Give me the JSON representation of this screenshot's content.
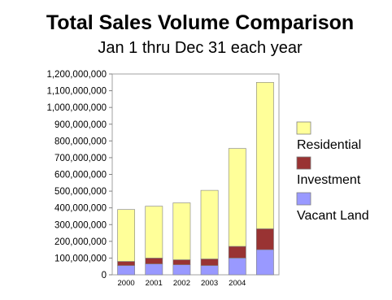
{
  "chart_data": {
    "type": "bar",
    "stacked": true,
    "title": "Total Sales Volume Comparison",
    "subtitle": "Jan 1 thru Dec 31 each year",
    "xlabel": "",
    "ylabel": "",
    "categories": [
      "2000",
      "2001",
      "2002",
      "2003",
      "2004",
      ""
    ],
    "series": [
      {
        "name": "Vacant Land",
        "color": "#9999ff",
        "values": [
          55000000,
          65000000,
          60000000,
          55000000,
          100000000,
          150000000
        ]
      },
      {
        "name": "Investment",
        "color": "#993333",
        "values": [
          25000000,
          35000000,
          30000000,
          40000000,
          70000000,
          125000000
        ]
      },
      {
        "name": "Residential",
        "color": "#ffff99",
        "values": [
          310000000,
          310000000,
          340000000,
          410000000,
          585000000,
          875000000
        ]
      }
    ],
    "legend_order": [
      "Residential",
      "Investment",
      "Vacant Land"
    ],
    "ylim": [
      0,
      1200000000
    ],
    "yticks": [
      "0",
      "100,000,000",
      "200,000,000",
      "300,000,000",
      "400,000,000",
      "500,000,000",
      "600,000,000",
      "700,000,000",
      "800,000,000",
      "900,000,000",
      "1,000,000,000",
      "1,100,000,000",
      "1,200,000,000"
    ],
    "grid": false,
    "legend_position": "right"
  }
}
